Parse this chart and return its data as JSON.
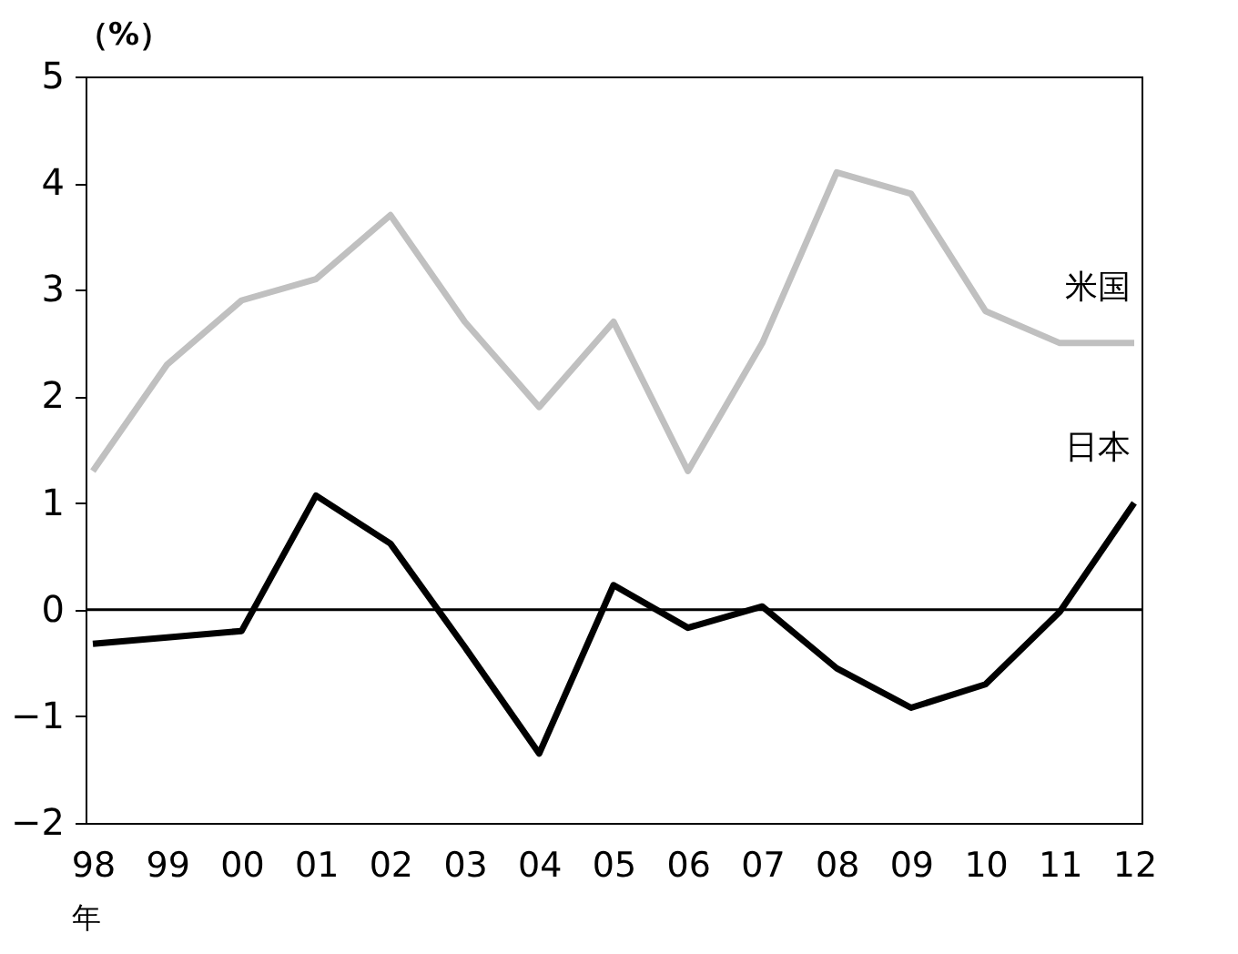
{
  "chart_data": {
    "type": "line",
    "ylabel": "（%）",
    "xlabel": "年",
    "categories": [
      "98",
      "99",
      "00",
      "01",
      "02",
      "03",
      "04",
      "05",
      "06",
      "07",
      "08",
      "09",
      "10",
      "11",
      "12"
    ],
    "series": [
      {
        "name": "米国",
        "color": "#c0c0c0",
        "values": [
          1.3,
          2.3,
          2.9,
          3.1,
          3.7,
          2.7,
          1.9,
          2.7,
          1.3,
          2.5,
          4.1,
          3.9,
          2.8,
          2.5,
          2.5
        ]
      },
      {
        "name": "日本",
        "color": "#000000",
        "values": [
          -0.32,
          -0.26,
          -0.2,
          1.07,
          0.62,
          -0.35,
          -1.35,
          0.23,
          -0.17,
          0.03,
          -0.55,
          -0.92,
          -0.7,
          -0.02,
          1.0
        ]
      }
    ],
    "ylim": [
      -2,
      5
    ],
    "yticks": [
      {
        "value": -2,
        "label": "−2"
      },
      {
        "value": -1,
        "label": "−1"
      },
      0,
      1,
      2,
      3,
      4,
      5
    ],
    "ref_lines": [
      {
        "axis": "y",
        "value": 0,
        "color": "#000000"
      }
    ],
    "grid": false,
    "marker": "none",
    "line_style": "solid"
  }
}
